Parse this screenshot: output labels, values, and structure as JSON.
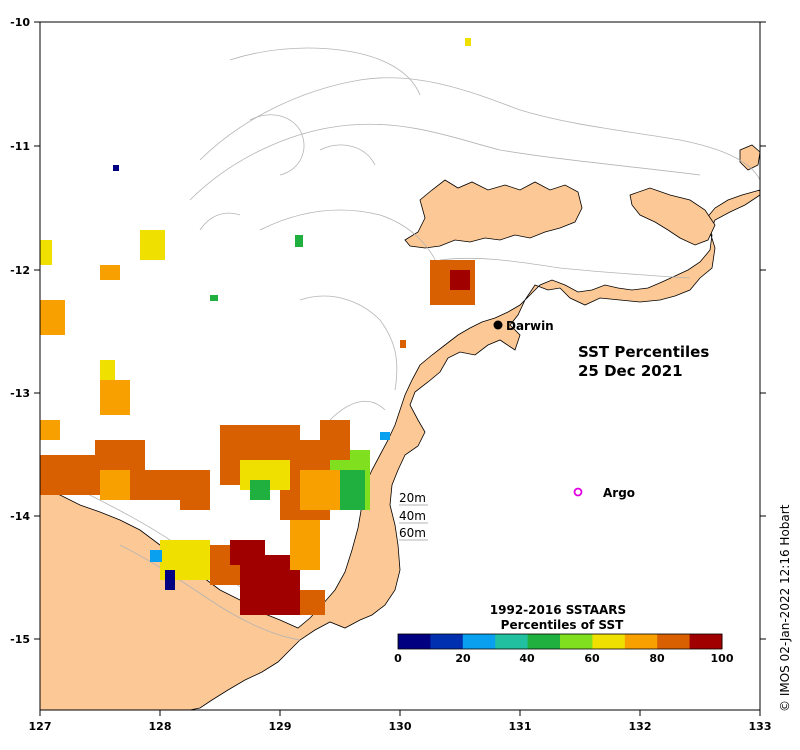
{
  "title": {
    "line1": "SST Percentiles",
    "line2": "25 Dec 2021"
  },
  "credit": "© IMOS 02-Jan-2022 12:16 Hobart",
  "places": [
    {
      "name": "Darwin",
      "marker": "filled-circle"
    },
    {
      "name": "Argo",
      "marker": "magenta-ring"
    }
  ],
  "depth_legend": [
    "20m",
    "40m",
    "60m"
  ],
  "axes": {
    "lon_ticks": [
      "127",
      "128",
      "129",
      "130",
      "131",
      "132",
      "133"
    ],
    "lat_ticks": [
      "-10",
      "-11",
      "-12",
      "-13",
      "-14",
      "-15"
    ]
  },
  "colorbar": {
    "title1": "1992-2016 SSTAARS",
    "title2": "Percentiles of SST",
    "tick_labels": [
      "0",
      "20",
      "40",
      "60",
      "80",
      "100"
    ],
    "colors": [
      "#000080",
      "#0030b0",
      "#0aa0f0",
      "#20c0a0",
      "#20b040",
      "#80e020",
      "#f0e000",
      "#f8a000",
      "#d86000",
      "#a00000"
    ]
  },
  "colors": {
    "land": "#fcc895",
    "sea": "#ffffff",
    "contour": "#b4b4b4",
    "marker_argo": "#e000e0"
  }
}
